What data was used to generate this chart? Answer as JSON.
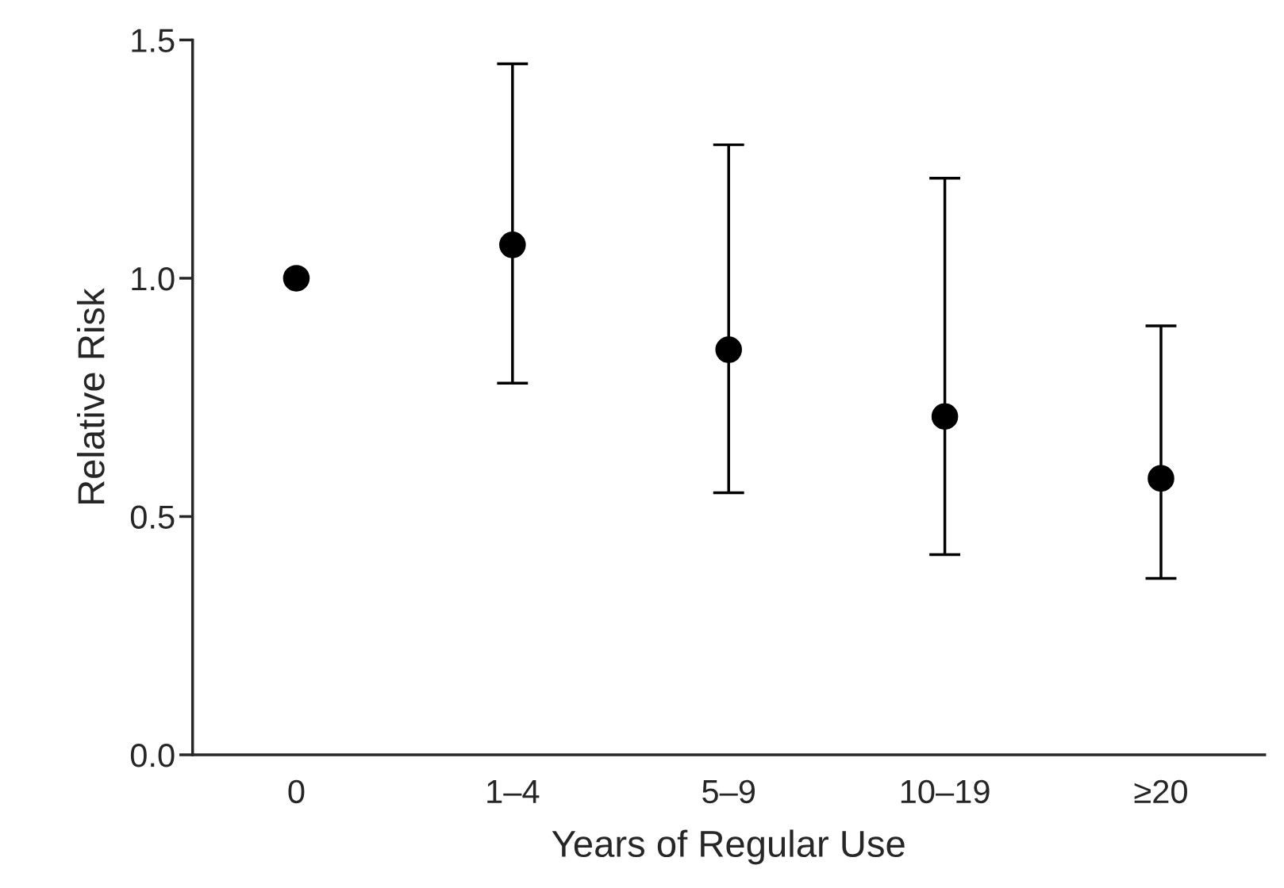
{
  "chart_data": {
    "type": "scatter",
    "xlabel": "Years of Regular Use",
    "ylabel": "Relative Risk",
    "categories": [
      "0",
      "1–4",
      "5–9",
      "10–19",
      "≥20"
    ],
    "values": [
      1.0,
      1.07,
      0.85,
      0.71,
      0.58
    ],
    "errors": [
      null,
      [
        0.78,
        1.45
      ],
      [
        0.55,
        1.28
      ],
      [
        0.42,
        1.21
      ],
      [
        0.37,
        0.9
      ]
    ],
    "color": "#000000",
    "marker": "circle",
    "grid": false,
    "legend": false,
    "ylim": [
      0,
      1.5
    ],
    "yticks": [
      {
        "value": 0,
        "label": "0.0"
      },
      {
        "value": 0.5,
        "label": "0.5"
      },
      {
        "value": 1,
        "label": "1.0"
      },
      {
        "value": 1.5,
        "label": "1.5"
      }
    ]
  }
}
